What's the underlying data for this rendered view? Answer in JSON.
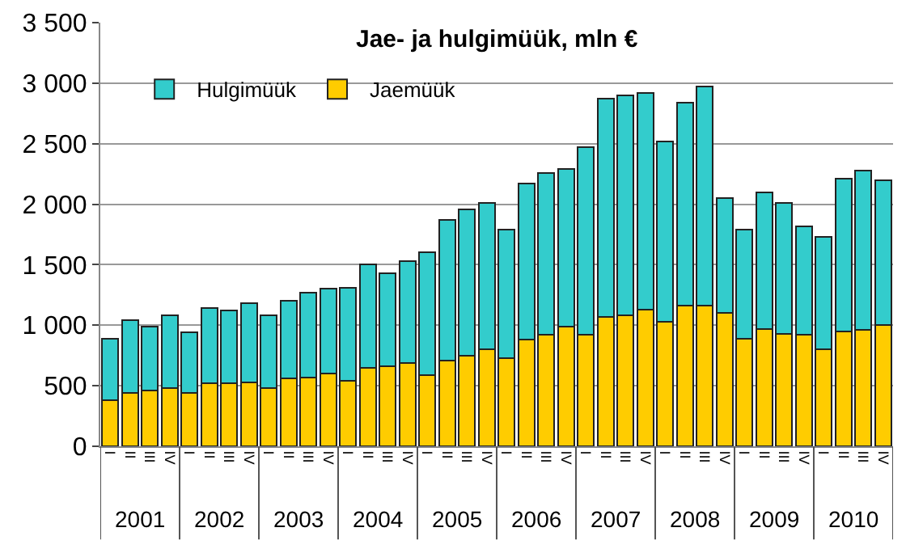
{
  "chart_data": {
    "type": "bar",
    "title": "Jae- ja hulgimüük, mln €",
    "stacked": true,
    "categories": [
      "I",
      "II",
      "III",
      "IV",
      "I",
      "II",
      "III",
      "IV",
      "I",
      "II",
      "III",
      "IV",
      "I",
      "II",
      "III",
      "IV",
      "I",
      "II",
      "III",
      "IV",
      "I",
      "II",
      "III",
      "IV",
      "I",
      "II",
      "III",
      "IV",
      "I",
      "II",
      "III",
      "IV",
      "I",
      "II",
      "III",
      "IV",
      "I",
      "II",
      "III",
      "IV"
    ],
    "series": [
      {
        "name": "Jaemüük",
        "color": "#ffcc00",
        "values": [
          380,
          440,
          460,
          480,
          440,
          520,
          520,
          530,
          480,
          560,
          570,
          600,
          540,
          650,
          660,
          690,
          590,
          710,
          750,
          800,
          730,
          880,
          920,
          990,
          920,
          1070,
          1080,
          1130,
          1030,
          1160,
          1160,
          1100,
          890,
          970,
          930,
          920,
          800,
          950,
          960,
          1000
        ]
      },
      {
        "name": "Hulgimüük",
        "color": "#33cccc",
        "values": [
          510,
          600,
          530,
          600,
          500,
          620,
          600,
          650,
          600,
          640,
          700,
          700,
          770,
          850,
          770,
          840,
          1010,
          1160,
          1210,
          1210,
          1060,
          1290,
          1340,
          1300,
          1550,
          1800,
          1820,
          1790,
          1490,
          1680,
          1810,
          950,
          900,
          1130,
          1080,
          900,
          930,
          1260,
          1320,
          1200
        ]
      }
    ],
    "annotations": [
      "2001",
      "2002",
      "2003",
      "2004",
      "2005",
      "2006",
      "2007",
      "2008",
      "2009",
      "2010"
    ],
    "ylim": [
      0,
      3500
    ],
    "yticks": [
      0,
      {
        "value": 500,
        "label": "500"
      },
      {
        "value": 1000,
        "label": "1 000"
      },
      {
        "value": 1500,
        "label": "1 500"
      },
      {
        "value": 2000,
        "label": "2 000"
      },
      {
        "value": 2500,
        "label": "2 500"
      },
      {
        "value": 3000,
        "label": "3 000"
      },
      {
        "value": 3500,
        "label": "3 500"
      }
    ],
    "grid": "y",
    "legend": "top left"
  }
}
